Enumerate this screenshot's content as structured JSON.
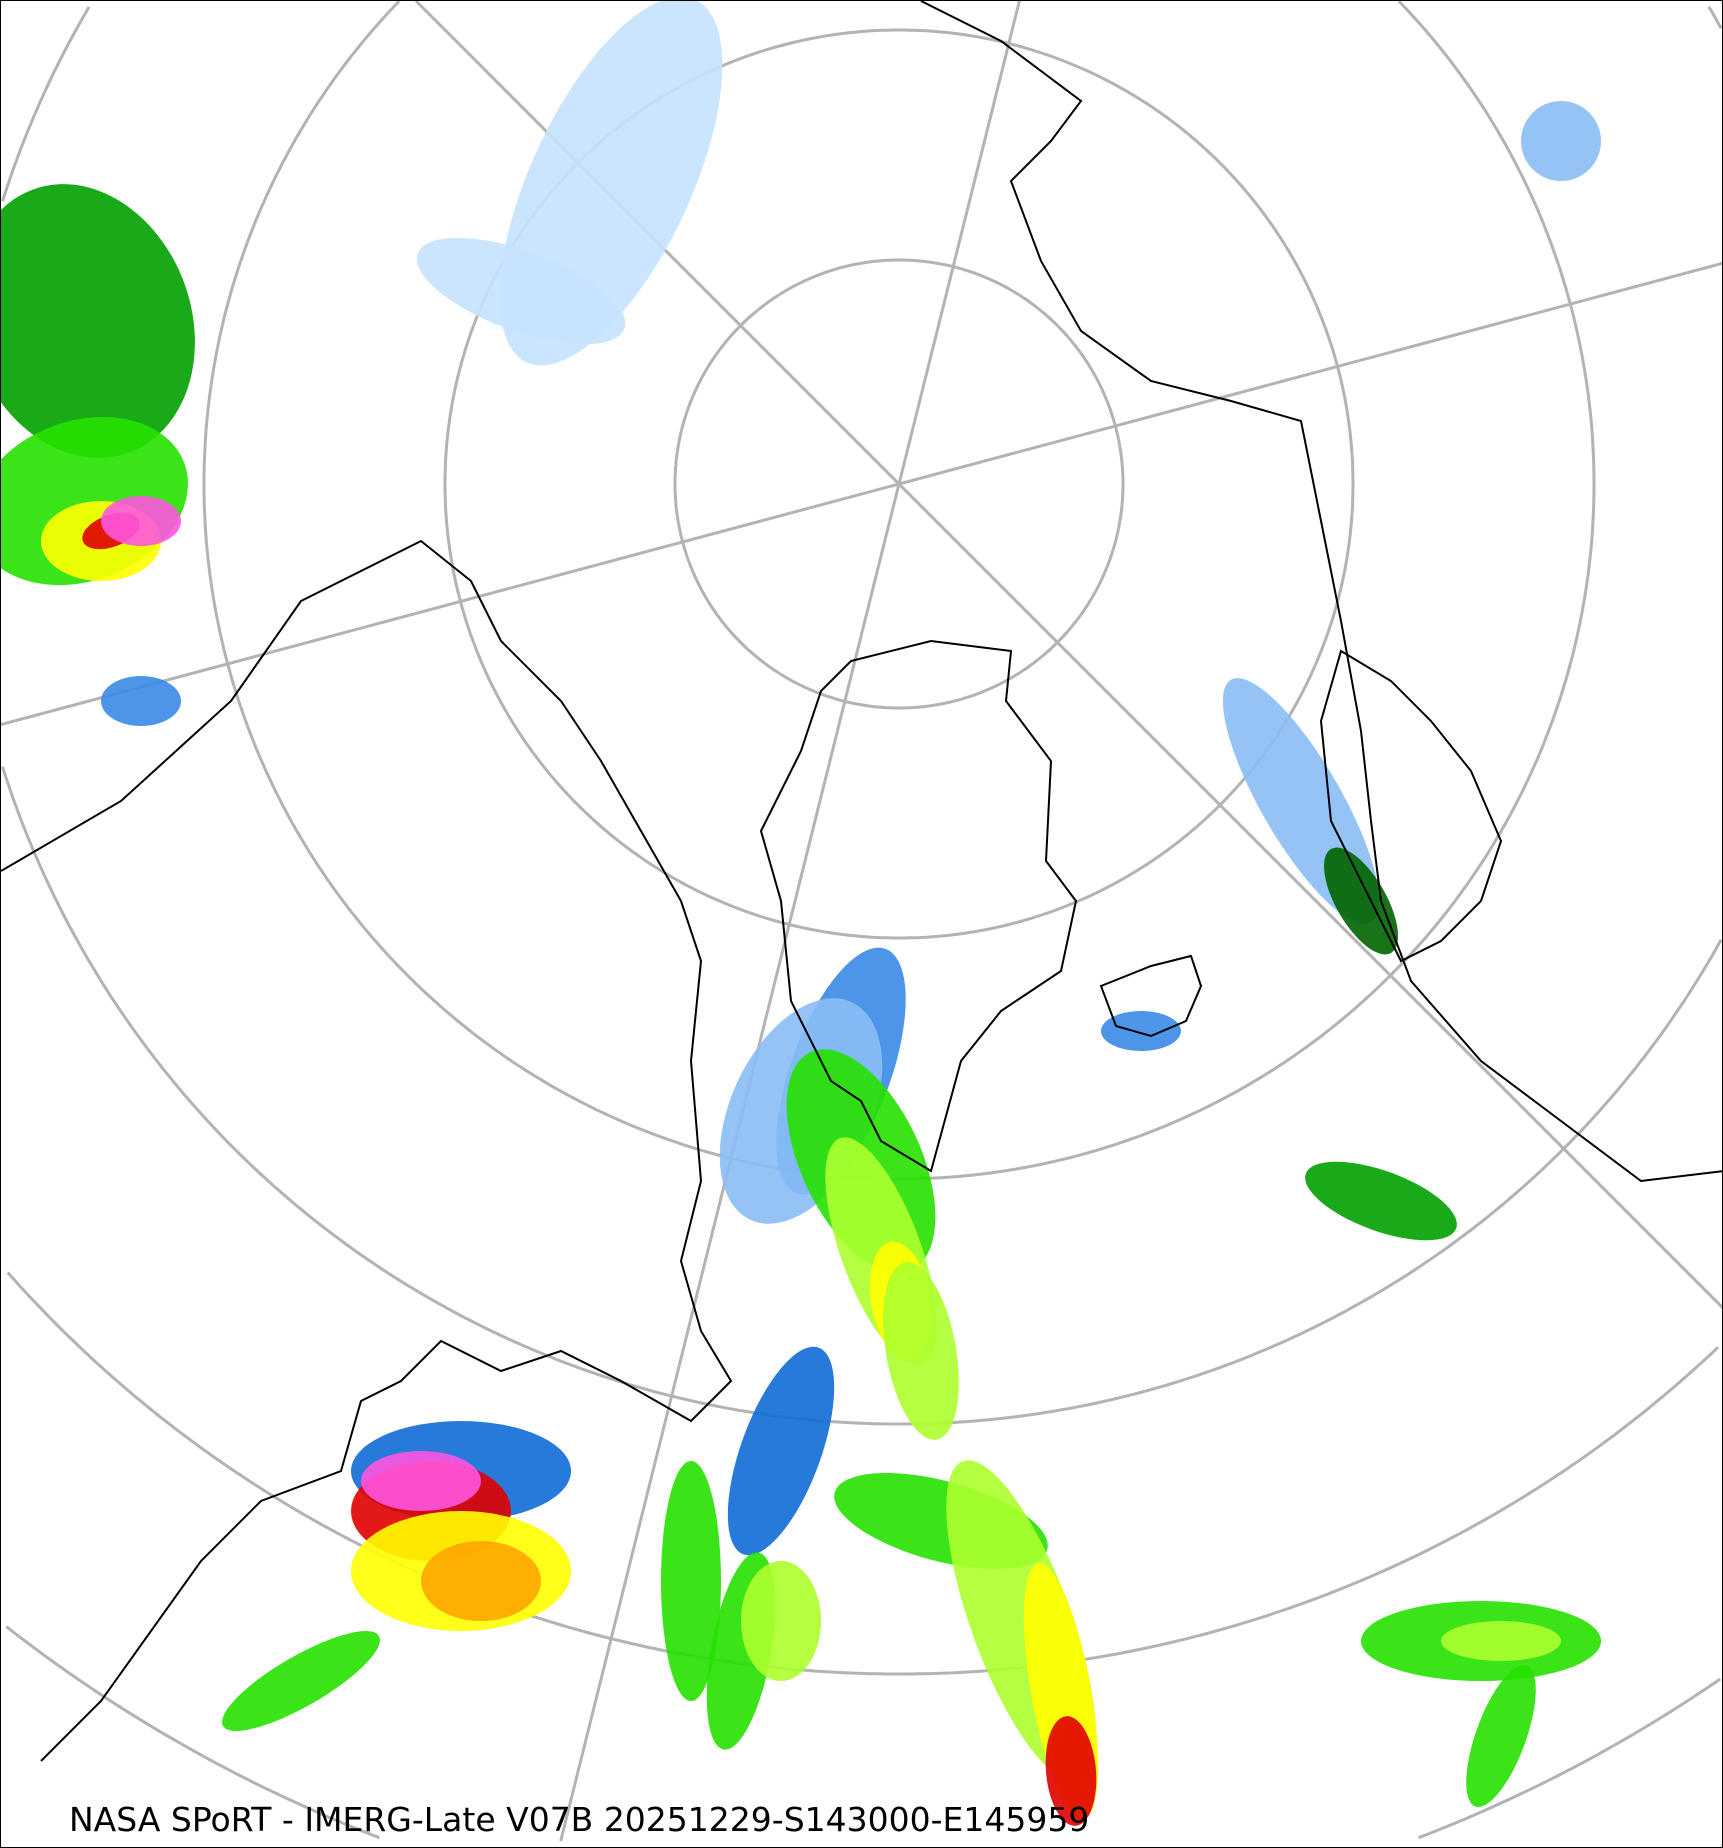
{
  "map": {
    "caption": "NASA SPoRT - IMERG-Late V07B 20251229-S143000-E145959",
    "projection": "north polar stereographic",
    "graticule_color": "#b3b3b3",
    "coastline_color": "#000000",
    "precip_colors": [
      "#c6e2ff",
      "#89bdf5",
      "#3a8ae6",
      "#0f6cd6",
      "#006400",
      "#00a000",
      "#26e000",
      "#adff2f",
      "#ffff00",
      "#ffa500",
      "#ff4500",
      "#e00000",
      "#ff55e0"
    ]
  }
}
